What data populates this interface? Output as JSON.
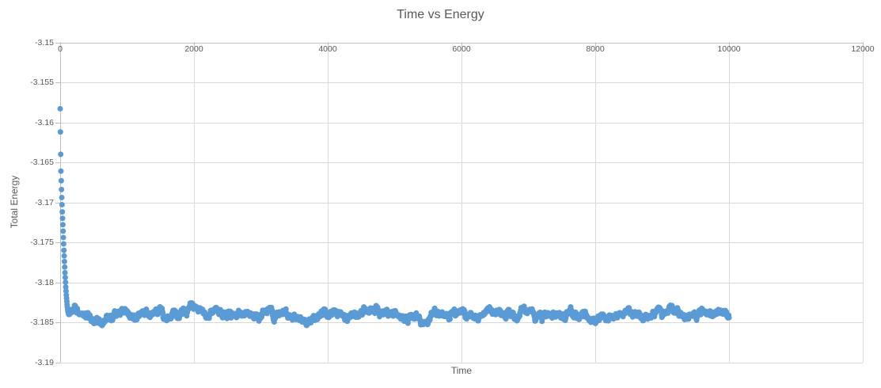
{
  "chart_data": {
    "type": "scatter",
    "title": "Time vs Energy",
    "xlabel": "Time",
    "ylabel": "Total Energy",
    "xlim": [
      0,
      12000
    ],
    "ylim": [
      -3.19,
      -3.15
    ],
    "grid": true,
    "legend": false,
    "x_ticks": [
      0,
      2000,
      4000,
      6000,
      8000,
      10000,
      12000
    ],
    "x_tick_labels": [
      "0",
      "2000",
      "4000",
      "6000",
      "8000",
      "10000",
      "12000"
    ],
    "y_ticks": [
      -3.15,
      -3.155,
      -3.16,
      -3.165,
      -3.17,
      -3.175,
      -3.18,
      -3.185,
      -3.19
    ],
    "y_tick_labels": [
      "-3.15",
      "-3.155",
      "-3.16",
      "-3.165",
      "-3.17",
      "-3.175",
      "-3.18",
      "-3.185",
      "-3.19"
    ],
    "marker": {
      "shape": "circle",
      "color": "#5B9BD5",
      "radius_px": 3.5
    },
    "series": [
      {
        "name": "Total Energy",
        "transient_points": [
          [
            0,
            -3.1583
          ],
          [
            4,
            -3.1612
          ],
          [
            8,
            -3.164
          ],
          [
            12,
            -3.1661
          ],
          [
            16,
            -3.1673
          ],
          [
            20,
            -3.1684
          ],
          [
            24,
            -3.1694
          ],
          [
            28,
            -3.1703
          ],
          [
            32,
            -3.1712
          ],
          [
            36,
            -3.172
          ],
          [
            40,
            -3.1728
          ],
          [
            44,
            -3.1736
          ],
          [
            48,
            -3.1744
          ],
          [
            52,
            -3.1752
          ],
          [
            56,
            -3.176
          ],
          [
            60,
            -3.1767
          ],
          [
            64,
            -3.1774
          ],
          [
            68,
            -3.1781
          ],
          [
            72,
            -3.1788
          ],
          [
            76,
            -3.1794
          ],
          [
            80,
            -3.18
          ],
          [
            84,
            -3.1806
          ],
          [
            88,
            -3.1811
          ],
          [
            92,
            -3.1816
          ],
          [
            96,
            -3.182
          ],
          [
            100,
            -3.1824
          ],
          [
            104,
            -3.1828
          ],
          [
            108,
            -3.1831
          ],
          [
            112,
            -3.1834
          ]
        ],
        "equilibrium_band": {
          "t_start": 116,
          "t_end": 10000,
          "step": 4,
          "mean": -3.184,
          "std": 0.00042,
          "max_dev": 0.0014,
          "ar_phi": 0.95,
          "jitter_std": 9e-05,
          "seed": 7
        }
      }
    ]
  },
  "colors": {
    "background": "#FFFFFF",
    "text": "#595959",
    "gridline": "#D9D9D9",
    "axis_line": "#BFBFBF",
    "marker": "#5B9BD5"
  }
}
